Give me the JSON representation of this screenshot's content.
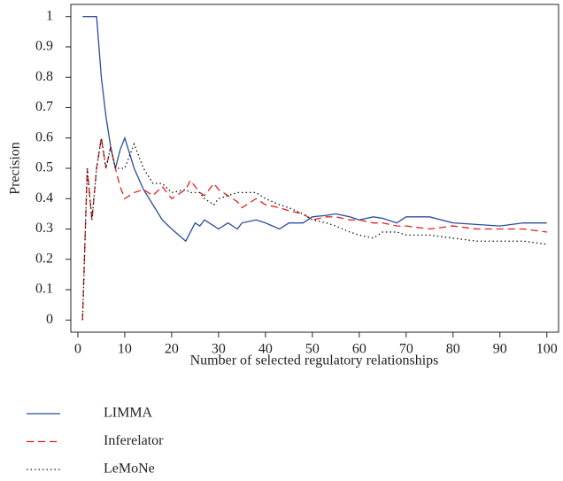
{
  "chart_data": {
    "type": "line",
    "xlabel": "Number of selected regulatory relationships",
    "ylabel": "Precision",
    "x": [
      1,
      2,
      3,
      4,
      5,
      6,
      7,
      8,
      9,
      10,
      12,
      14,
      16,
      18,
      20,
      23,
      24,
      25,
      26,
      27,
      28,
      29,
      30,
      32,
      34,
      35,
      38,
      40,
      43,
      45,
      48,
      50,
      53,
      55,
      58,
      60,
      63,
      65,
      68,
      70,
      75,
      80,
      85,
      90,
      95,
      100
    ],
    "series": [
      {
        "name": "LIMMA",
        "color": "#2a4d9b",
        "dash": "solid",
        "values": [
          1,
          1,
          1,
          1,
          0.8,
          0.67,
          0.57,
          0.5,
          0.56,
          0.6,
          0.5,
          0.43,
          0.38,
          0.33,
          0.3,
          0.26,
          0.29,
          0.32,
          0.31,
          0.33,
          0.32,
          0.31,
          0.3,
          0.32,
          0.3,
          0.32,
          0.33,
          0.32,
          0.3,
          0.32,
          0.32,
          0.34,
          0.345,
          0.35,
          0.34,
          0.33,
          0.34,
          0.335,
          0.32,
          0.34,
          0.34,
          0.32,
          0.315,
          0.31,
          0.32,
          0.32
        ]
      },
      {
        "name": "Inferelator",
        "color": "#e0201b",
        "dash": "dashed",
        "values": [
          0,
          0.5,
          0.33,
          0.5,
          0.6,
          0.5,
          0.57,
          0.5,
          0.44,
          0.4,
          0.42,
          0.43,
          0.41,
          0.44,
          0.4,
          0.43,
          0.46,
          0.44,
          0.42,
          0.41,
          0.43,
          0.45,
          0.43,
          0.41,
          0.39,
          0.37,
          0.4,
          0.38,
          0.37,
          0.36,
          0.35,
          0.33,
          0.34,
          0.34,
          0.33,
          0.33,
          0.32,
          0.32,
          0.31,
          0.31,
          0.3,
          0.31,
          0.3,
          0.3,
          0.3,
          0.29
        ]
      },
      {
        "name": "LeMoNe",
        "color": "#111111",
        "dash": "dotted",
        "values": [
          0,
          0.5,
          0.33,
          0.5,
          0.6,
          0.5,
          0.57,
          0.5,
          0.5,
          0.5,
          0.58,
          0.5,
          0.45,
          0.45,
          0.42,
          0.43,
          0.42,
          0.42,
          0.42,
          0.4,
          0.39,
          0.38,
          0.4,
          0.41,
          0.42,
          0.42,
          0.42,
          0.4,
          0.38,
          0.37,
          0.35,
          0.33,
          0.32,
          0.31,
          0.29,
          0.28,
          0.27,
          0.29,
          0.29,
          0.28,
          0.28,
          0.27,
          0.26,
          0.26,
          0.26,
          0.25
        ]
      }
    ],
    "xlim": [
      -1.5,
      102.5
    ],
    "ylim": [
      -0.04,
      1.04
    ],
    "xticks": [
      0,
      10,
      20,
      30,
      40,
      50,
      60,
      70,
      80,
      90,
      100
    ],
    "yticks": [
      0,
      0.1,
      0.2,
      0.3,
      0.4,
      0.5,
      0.6,
      0.7,
      0.8,
      0.9,
      1
    ],
    "legend": "bottom-left"
  }
}
